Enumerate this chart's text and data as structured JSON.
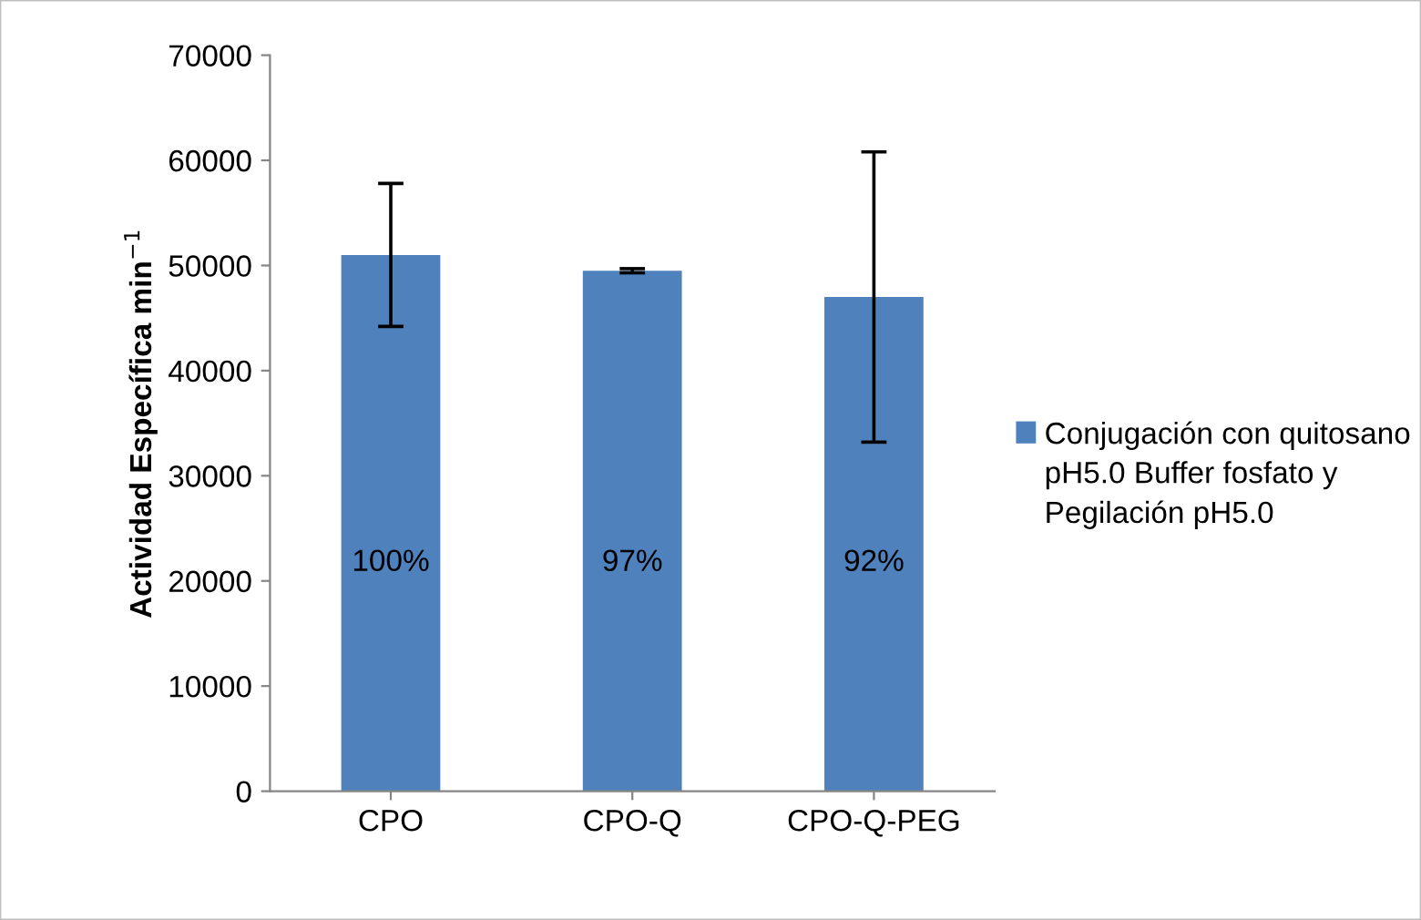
{
  "chart_data": {
    "type": "bar",
    "ylabel": "Actividad Específica min$^{−1}$",
    "categories": [
      "CPO",
      "CPO-Q",
      "CPO-Q-PEG"
    ],
    "series": [
      {
        "name": "Conjugación con quitosano pH5.0 Buffer fosfato y Pegilación pH5.0",
        "color": "#4f81bd",
        "values": [
          51000,
          49500,
          47000
        ],
        "errors": [
          6800,
          200,
          13800
        ]
      }
    ],
    "annotations": [
      "100%",
      "97%",
      "92%"
    ],
    "ylim": [
      0,
      70000
    ],
    "yticks": [
      0,
      10000,
      20000,
      30000,
      40000,
      50000,
      60000,
      70000
    ],
    "grid": false,
    "legend": "right"
  }
}
